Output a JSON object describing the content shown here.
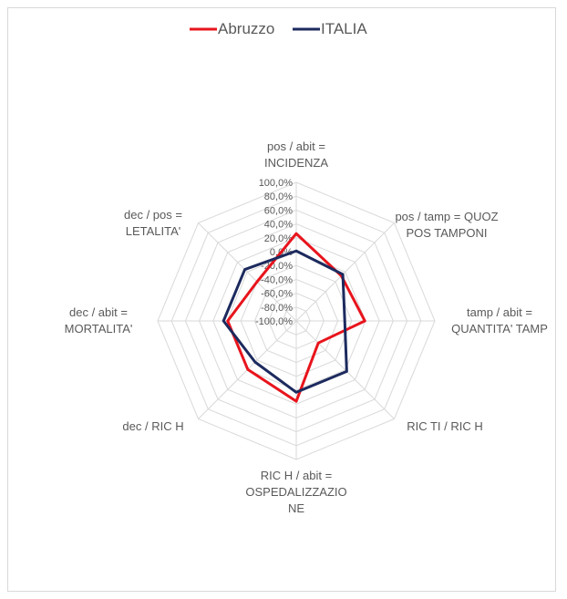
{
  "chart_data": {
    "type": "radar",
    "categories": [
      "pos / abit = INCIDENZA",
      "pos / tamp = QUOZ POS TAMPONI",
      "tamp / abit = QUANTITA' TAMP",
      "RIC TI / RIC H",
      "RIC H / abit = OSPEDALIZZAZIONE",
      "dec / RIC H",
      "dec / abit = MORTALITA'",
      "dec / pos = LETALITA'"
    ],
    "series": [
      {
        "name": "Abruzzo",
        "color": "#e8141c",
        "values": [
          26,
          -8,
          -1,
          -55,
          16,
          -1,
          -1,
          -20
        ]
      },
      {
        "name": "ITALIA",
        "color": "#1c2a5e",
        "values": [
          1,
          -5,
          -30,
          3,
          3,
          -16,
          5,
          5
        ]
      }
    ],
    "ylim": [
      -100,
      100
    ],
    "yticks": [
      {
        "value": -100,
        "label": "-100,0%"
      },
      {
        "value": -80,
        "label": "-80,0%"
      },
      {
        "value": -60,
        "label": "-60,0%"
      },
      {
        "value": -40,
        "label": "-40,0%"
      },
      {
        "value": -20,
        "label": "-20,0%"
      },
      {
        "value": 0,
        "label": "0,0%"
      },
      {
        "value": 20,
        "label": "20,0%"
      },
      {
        "value": 40,
        "label": "40,0%"
      },
      {
        "value": 60,
        "label": "60,0%"
      },
      {
        "value": 80,
        "label": "80,0%"
      },
      {
        "value": 100,
        "label": "100,0%"
      }
    ],
    "grid": true,
    "legend": "top"
  }
}
